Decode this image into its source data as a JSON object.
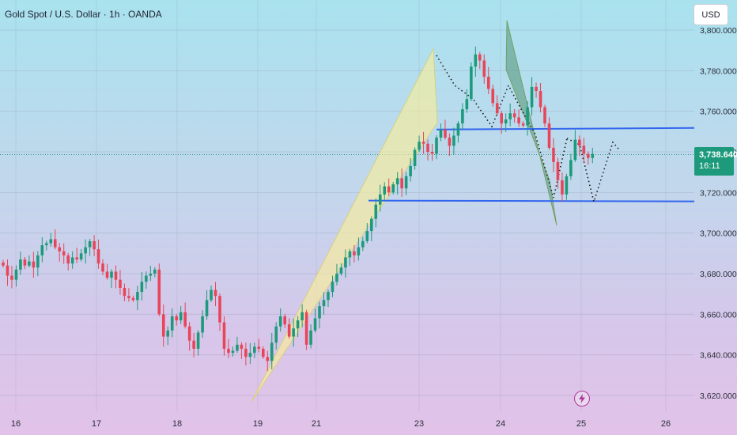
{
  "header": {
    "symbol_title": "Gold Spot / U.S. Dollar · 1h · OANDA"
  },
  "currency": {
    "label": "USD"
  },
  "current_price": {
    "value": 3738.64,
    "label": "3,738.640",
    "countdown": "16:11"
  },
  "event_icon": {
    "name": "lightning-icon"
  },
  "colors": {
    "up": "#1d9a7b",
    "down": "#e8455a",
    "level_line": "#3366ee",
    "channel_fill": "#fbef96",
    "flag_fill": "#5e9c83",
    "projection": "#1a1a1a"
  },
  "chart_data": {
    "type": "candlestick",
    "title": "Gold Spot / U.S. Dollar · 1h · OANDA",
    "x_ticks": [
      "16",
      "17",
      "18",
      "19",
      "21",
      "23",
      "24",
      "25",
      "26"
    ],
    "y_ticks": [
      "3,620.000",
      "3,640.000",
      "3,660.000",
      "3,680.000",
      "3,700.000",
      "3,720.000",
      "3,740.000",
      "3,760.000",
      "3,780.000",
      "3,800.000"
    ],
    "ylim": [
      3618,
      3815
    ],
    "grid": true,
    "candles_close": [
      3684,
      3679,
      3677,
      3682,
      3687,
      3684,
      3686,
      3683,
      3689,
      3694,
      3695,
      3697,
      3693,
      3691,
      3689,
      3685,
      3688,
      3687,
      3690,
      3693,
      3696,
      3692,
      3685,
      3681,
      3678,
      3681,
      3677,
      3673,
      3669,
      3668,
      3667,
      3671,
      3676,
      3679,
      3680,
      3682,
      3660,
      3649,
      3652,
      3659,
      3657,
      3661,
      3654,
      3647,
      3643,
      3651,
      3659,
      3667,
      3672,
      3669,
      3656,
      3643,
      3641,
      3642,
      3645,
      3643,
      3639,
      3641,
      3644,
      3643,
      3639,
      3637,
      3646,
      3654,
      3659,
      3655,
      3649,
      3653,
      3657,
      3661,
      3645,
      3652,
      3658,
      3664,
      3667,
      3671,
      3676,
      3680,
      3683,
      3688,
      3691,
      3689,
      3693,
      3696,
      3701,
      3707,
      3714,
      3719,
      3723,
      3720,
      3724,
      3727,
      3722,
      3728,
      3733,
      3741,
      3745,
      3744,
      3740,
      3739,
      3747,
      3751,
      3747,
      3743,
      3748,
      3754,
      3761,
      3766,
      3782,
      3788,
      3785,
      3777,
      3771,
      3764,
      3759,
      3754,
      3756,
      3759,
      3757,
      3754,
      3753,
      3762,
      3772,
      3770,
      3762,
      3754,
      3742,
      3735,
      3726,
      3719,
      3728,
      3736,
      3746,
      3743,
      3739,
      3737,
      3739
    ],
    "levels": [
      {
        "name": "resistance",
        "value": 3751
      },
      {
        "name": "support",
        "value": 3716
      }
    ],
    "current_value": 3738.64
  }
}
